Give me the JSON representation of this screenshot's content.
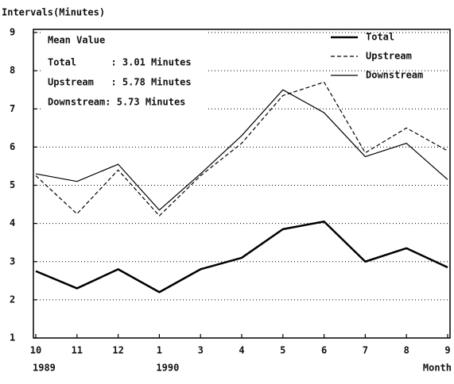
{
  "chart_data": {
    "type": "line",
    "y_label": "Intervals(Minutes)",
    "x_label": "Month",
    "categories": [
      "10",
      "11",
      "12",
      "1",
      "3",
      "4",
      "5",
      "6",
      "7",
      "8",
      "9"
    ],
    "x_sublabels": [
      "1989",
      null,
      null,
      "1990",
      null,
      null,
      null,
      null,
      null,
      null,
      null
    ],
    "ylim": [
      1,
      9
    ],
    "yticks": [
      1,
      2,
      3,
      4,
      5,
      6,
      7,
      8,
      9
    ],
    "grid": true,
    "legend": "upper right",
    "series": [
      {
        "name": "Total",
        "color": "#000000",
        "width": 2.5,
        "dash": "none",
        "values": [
          2.75,
          2.3,
          2.8,
          2.2,
          2.8,
          3.1,
          3.85,
          4.05,
          3.0,
          3.35,
          2.85
        ]
      },
      {
        "name": "Upstream",
        "color": "#000000",
        "width": 1.2,
        "dash": "5,3",
        "values": [
          5.25,
          4.25,
          5.4,
          4.2,
          5.25,
          6.1,
          7.35,
          7.7,
          5.85,
          6.5,
          5.9
        ]
      },
      {
        "name": "Downstream",
        "color": "#000000",
        "width": 1.2,
        "dash": "none",
        "values": [
          5.3,
          5.1,
          5.55,
          4.35,
          5.3,
          6.3,
          7.5,
          6.9,
          5.75,
          6.1,
          5.15
        ]
      }
    ],
    "annotations": {
      "title": "Mean Value",
      "lines": [
        "Total      : 3.01 Minutes",
        "Upstream   : 5.78 Minutes",
        "Downstream: 5.73 Minutes"
      ]
    }
  }
}
